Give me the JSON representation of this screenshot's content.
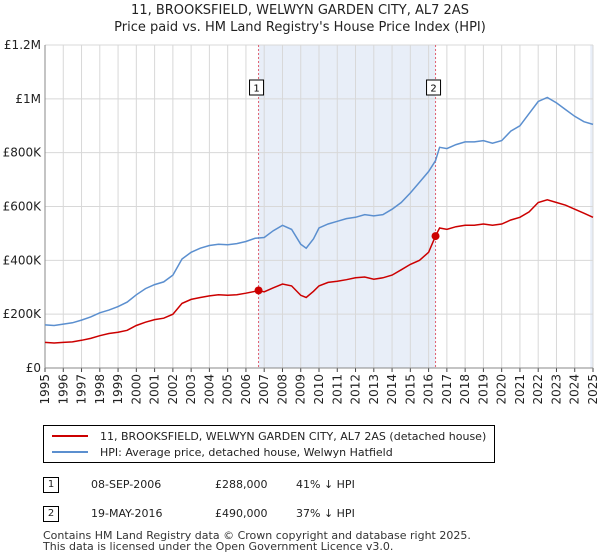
{
  "colors": {
    "property": "#cc0000",
    "hpi": "#5b8fcf",
    "vline": "#e06070",
    "shade": "#e8eef8"
  },
  "chart_data": {
    "type": "line",
    "title": "11, BROOKSFIELD, WELWYN GARDEN CITY, AL7 2AS",
    "subtitle": "Price paid vs. HM Land Registry's House Price Index (HPI)",
    "xlim": [
      1995,
      2025
    ],
    "ylim": [
      0,
      1200000
    ],
    "y_ticks": [
      0,
      200000,
      400000,
      600000,
      800000,
      1000000,
      1200000
    ],
    "y_tick_labels": [
      "£0",
      "£200K",
      "£400K",
      "£600K",
      "£800K",
      "£1M",
      "£1.2M"
    ],
    "x_ticks": [
      1995,
      1996,
      1997,
      1998,
      1999,
      2000,
      2001,
      2002,
      2003,
      2004,
      2005,
      2006,
      2007,
      2008,
      2009,
      2010,
      2011,
      2012,
      2013,
      2014,
      2015,
      2016,
      2017,
      2018,
      2019,
      2020,
      2021,
      2022,
      2023,
      2024,
      2025
    ],
    "x_tick_labels": [
      "1995",
      "1996",
      "1997",
      "1998",
      "1999",
      "2000",
      "2001",
      "2002",
      "2003",
      "2004",
      "2005",
      "2006",
      "2007",
      "2008",
      "2009",
      "2010",
      "2011",
      "2012",
      "2013",
      "2014",
      "2015",
      "2016",
      "2017",
      "2018",
      "2019",
      "2020",
      "2021",
      "2022",
      "2023",
      "2024",
      "2025"
    ],
    "series": [
      {
        "name": "11, BROOKSFIELD, WELWYN GARDEN CITY, AL7 2AS (detached house)",
        "key": "property",
        "points": [
          [
            1995.0,
            95000
          ],
          [
            1995.5,
            93000
          ],
          [
            1996.0,
            95000
          ],
          [
            1996.5,
            97000
          ],
          [
            1997.0,
            103000
          ],
          [
            1997.5,
            110000
          ],
          [
            1998.0,
            120000
          ],
          [
            1998.5,
            128000
          ],
          [
            1999.0,
            133000
          ],
          [
            1999.5,
            140000
          ],
          [
            2000.0,
            158000
          ],
          [
            2000.5,
            170000
          ],
          [
            2001.0,
            180000
          ],
          [
            2001.5,
            185000
          ],
          [
            2002.0,
            200000
          ],
          [
            2002.5,
            240000
          ],
          [
            2003.0,
            255000
          ],
          [
            2003.5,
            262000
          ],
          [
            2004.0,
            268000
          ],
          [
            2004.5,
            272000
          ],
          [
            2005.0,
            270000
          ],
          [
            2005.5,
            272000
          ],
          [
            2006.0,
            278000
          ],
          [
            2006.5,
            285000
          ],
          [
            2006.69,
            288000
          ],
          [
            2007.0,
            283000
          ],
          [
            2007.5,
            298000
          ],
          [
            2008.0,
            312000
          ],
          [
            2008.5,
            305000
          ],
          [
            2009.0,
            270000
          ],
          [
            2009.3,
            262000
          ],
          [
            2009.7,
            285000
          ],
          [
            2010.0,
            305000
          ],
          [
            2010.5,
            318000
          ],
          [
            2011.0,
            322000
          ],
          [
            2011.5,
            328000
          ],
          [
            2012.0,
            335000
          ],
          [
            2012.5,
            338000
          ],
          [
            2013.0,
            330000
          ],
          [
            2013.5,
            335000
          ],
          [
            2014.0,
            345000
          ],
          [
            2014.5,
            365000
          ],
          [
            2015.0,
            385000
          ],
          [
            2015.5,
            400000
          ],
          [
            2016.0,
            430000
          ],
          [
            2016.38,
            490000
          ],
          [
            2016.6,
            520000
          ],
          [
            2017.0,
            515000
          ],
          [
            2017.5,
            525000
          ],
          [
            2018.0,
            530000
          ],
          [
            2018.5,
            530000
          ],
          [
            2019.0,
            535000
          ],
          [
            2019.5,
            530000
          ],
          [
            2020.0,
            535000
          ],
          [
            2020.5,
            550000
          ],
          [
            2021.0,
            560000
          ],
          [
            2021.5,
            580000
          ],
          [
            2022.0,
            615000
          ],
          [
            2022.5,
            625000
          ],
          [
            2023.0,
            615000
          ],
          [
            2023.5,
            605000
          ],
          [
            2024.0,
            590000
          ],
          [
            2024.5,
            575000
          ],
          [
            2025.0,
            560000
          ]
        ]
      },
      {
        "name": "HPI: Average price, detached house, Welwyn Hatfield",
        "key": "hpi",
        "points": [
          [
            1995.0,
            160000
          ],
          [
            1995.5,
            158000
          ],
          [
            1996.0,
            163000
          ],
          [
            1996.5,
            168000
          ],
          [
            1997.0,
            178000
          ],
          [
            1997.5,
            190000
          ],
          [
            1998.0,
            205000
          ],
          [
            1998.5,
            215000
          ],
          [
            1999.0,
            228000
          ],
          [
            1999.5,
            245000
          ],
          [
            2000.0,
            272000
          ],
          [
            2000.5,
            295000
          ],
          [
            2001.0,
            310000
          ],
          [
            2001.5,
            320000
          ],
          [
            2002.0,
            345000
          ],
          [
            2002.5,
            405000
          ],
          [
            2003.0,
            430000
          ],
          [
            2003.5,
            445000
          ],
          [
            2004.0,
            455000
          ],
          [
            2004.5,
            460000
          ],
          [
            2005.0,
            458000
          ],
          [
            2005.5,
            462000
          ],
          [
            2006.0,
            470000
          ],
          [
            2006.5,
            482000
          ],
          [
            2007.0,
            485000
          ],
          [
            2007.5,
            510000
          ],
          [
            2008.0,
            530000
          ],
          [
            2008.5,
            515000
          ],
          [
            2009.0,
            460000
          ],
          [
            2009.3,
            445000
          ],
          [
            2009.7,
            480000
          ],
          [
            2010.0,
            520000
          ],
          [
            2010.5,
            535000
          ],
          [
            2011.0,
            545000
          ],
          [
            2011.5,
            555000
          ],
          [
            2012.0,
            560000
          ],
          [
            2012.5,
            570000
          ],
          [
            2013.0,
            565000
          ],
          [
            2013.5,
            570000
          ],
          [
            2014.0,
            590000
          ],
          [
            2014.5,
            615000
          ],
          [
            2015.0,
            650000
          ],
          [
            2015.5,
            690000
          ],
          [
            2016.0,
            730000
          ],
          [
            2016.38,
            770000
          ],
          [
            2016.6,
            820000
          ],
          [
            2017.0,
            815000
          ],
          [
            2017.5,
            830000
          ],
          [
            2018.0,
            840000
          ],
          [
            2018.5,
            840000
          ],
          [
            2019.0,
            845000
          ],
          [
            2019.5,
            835000
          ],
          [
            2020.0,
            845000
          ],
          [
            2020.5,
            880000
          ],
          [
            2021.0,
            900000
          ],
          [
            2021.5,
            945000
          ],
          [
            2022.0,
            990000
          ],
          [
            2022.5,
            1005000
          ],
          [
            2023.0,
            985000
          ],
          [
            2023.5,
            960000
          ],
          [
            2024.0,
            935000
          ],
          [
            2024.5,
            915000
          ],
          [
            2025.0,
            905000
          ]
        ]
      }
    ],
    "annotations": [
      {
        "label": "1",
        "x": 2006.69,
        "y": 288000
      },
      {
        "label": "2",
        "x": 2016.38,
        "y": 490000
      }
    ]
  },
  "legend": {
    "items": [
      {
        "label": "11, BROOKSFIELD, WELWYN GARDEN CITY, AL7 2AS (detached house)"
      },
      {
        "label": "HPI: Average price, detached house, Welwyn Hatfield"
      }
    ]
  },
  "transactions": [
    {
      "num": "1",
      "date": "08-SEP-2006",
      "price": "£288,000",
      "pct": "41% ↓ HPI"
    },
    {
      "num": "2",
      "date": "19-MAY-2016",
      "price": "£490,000",
      "pct": "37% ↓ HPI"
    }
  ],
  "footer": {
    "line1": "Contains HM Land Registry data © Crown copyright and database right 2025.",
    "line2": "This data is licensed under the Open Government Licence v3.0."
  }
}
